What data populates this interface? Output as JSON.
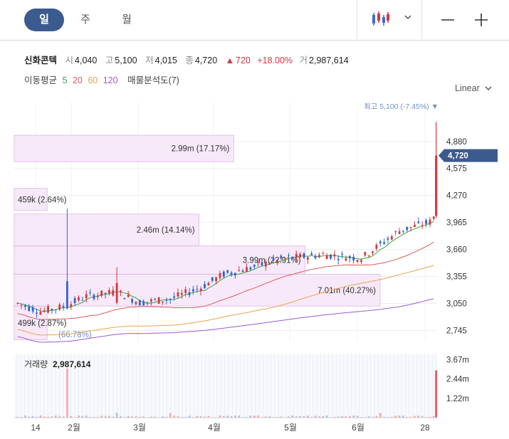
{
  "period_tabs": [
    {
      "label": "일",
      "active": true
    },
    {
      "label": "주",
      "active": false
    },
    {
      "label": "월",
      "active": false
    }
  ],
  "icons": {
    "chart_type": "candlestick-icon",
    "dropdown": "chevron-down-icon",
    "zoom_out": "minus-icon",
    "zoom_in": "plus-icon"
  },
  "stock": {
    "name": "신화콘텍",
    "open_label": "시",
    "open": "4,040",
    "high_label": "고",
    "high": "5,100",
    "low_label": "저",
    "low": "4,015",
    "close_label": "종",
    "close": "4,720",
    "change_arrow": "▲",
    "change": "720",
    "change_pct": "+18.00%",
    "volume_label": "거",
    "volume": "2,987,614"
  },
  "ma_legend": {
    "label": "이동평균",
    "periods": [
      {
        "value": "5",
        "color": "#3aa63a"
      },
      {
        "value": "20",
        "color": "#e05a5a"
      },
      {
        "value": "60",
        "color": "#f0a050"
      },
      {
        "value": "120",
        "color": "#9a5ad8"
      }
    ],
    "profile_label": "매물분석도(7)"
  },
  "scale_button": "Linear",
  "chart_data": {
    "type": "candlestick",
    "price_ticks": [
      4880,
      4575,
      4270,
      3965,
      3660,
      3355,
      3050,
      2745
    ],
    "price_tick_labels": [
      "4,880",
      "4,575",
      "4,270",
      "3,965",
      "3,660",
      "3,355",
      "3,050",
      "2,745"
    ],
    "price_range": [
      2620,
      5320
    ],
    "current_price": 4720,
    "current_price_label": "4,720",
    "high_marker_label": "최고 5,100 (-7.45%) ▼",
    "high_price": 5100,
    "x_labels": [
      "14",
      "2월",
      "3월",
      "4월",
      "5월",
      "6월",
      "28"
    ],
    "volume_label": "거래량",
    "volume_value": "2,987,614",
    "volume_ticks": [
      3.67,
      2.44,
      1.22
    ],
    "volume_tick_labels": [
      "3.67m",
      "2.44m",
      "1.22m"
    ],
    "volume_max": 4.0,
    "volume_profile": [
      {
        "low": 4650,
        "high": 4950,
        "label": "2.99m (17.17%)",
        "fraction": 0.6
      },
      {
        "low": 4100,
        "high": 4350,
        "label": "459k (2.64%)",
        "fraction": 0.09
      },
      {
        "low": 3700,
        "high": 4060,
        "label": "2.46m (14.14%)",
        "fraction": 0.505
      },
      {
        "low": 3380,
        "high": 3700,
        "label": "3.99m (22.91%)",
        "fraction": 0.795
      },
      {
        "low": 3020,
        "high": 3380,
        "label": "7.01m (40.27%)",
        "fraction": 1.0
      },
      {
        "low": 2640,
        "high": 3020,
        "label": "499k (2.87%)",
        "fraction": 0.09
      },
      {
        "low": 2620,
        "high": 2780,
        "label": "(66.78%)",
        "fraction": 0.0
      }
    ]
  }
}
